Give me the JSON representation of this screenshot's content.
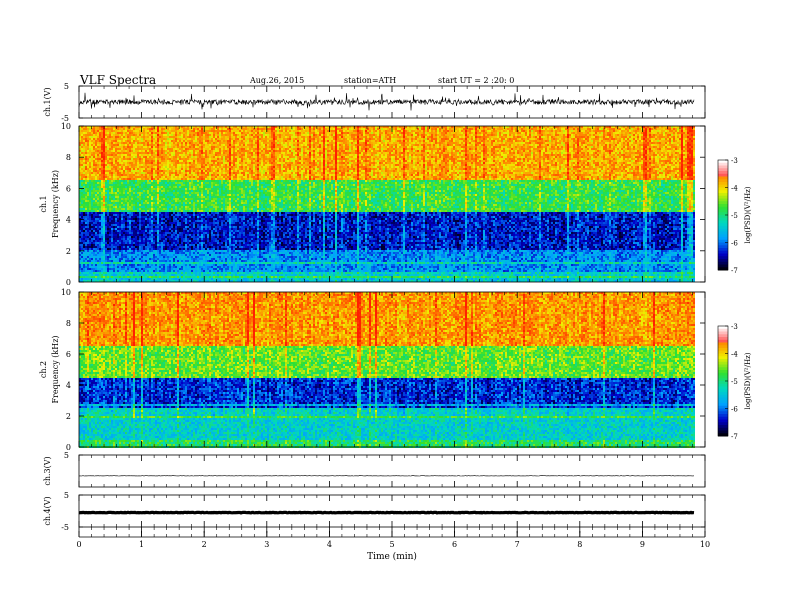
{
  "header": {
    "title": "VLF Spectra",
    "date": "Aug.26, 2015",
    "station": "station=ATH",
    "start": "start  UT =   2  :20: 0"
  },
  "chart_data": [
    {
      "type": "line",
      "name": "ch1-waveform",
      "ylabel": "ch.1(V)",
      "ylim": [
        -5,
        5
      ],
      "y_ticks": [
        "5",
        "-5"
      ],
      "noise_amplitude_v": 1.4
    },
    {
      "type": "heatmap",
      "name": "ch1-spectrogram",
      "ylabel": "ch.1\nFrequency (kHz)",
      "ylim": [
        0,
        10
      ],
      "y_ticks": [
        "0",
        "2",
        "4",
        "6",
        "8",
        "10"
      ],
      "colorbar": {
        "label": "log(PSD)(V²/Hz)",
        "range": [
          -7,
          -3
        ],
        "ticks": [
          "-3",
          "-4",
          "-5",
          "-6",
          "-7"
        ]
      },
      "bands": [
        {
          "freq_khz": [
            0,
            0.5
          ],
          "log_psd": -5.5
        },
        {
          "freq_khz": [
            0.5,
            2.0
          ],
          "log_psd": -5.9
        },
        {
          "freq_khz": [
            2.0,
            4.5
          ],
          "log_psd": -6.4
        },
        {
          "freq_khz": [
            4.5,
            6.5
          ],
          "log_psd": -4.8
        },
        {
          "freq_khz": [
            6.5,
            10
          ],
          "log_psd": -3.8
        }
      ]
    },
    {
      "type": "heatmap",
      "name": "ch2-spectrogram",
      "ylabel": "ch.2\nFrequency (kHz)",
      "ylim": [
        0,
        10
      ],
      "y_ticks": [
        "0",
        "2",
        "4",
        "6",
        "8",
        "10"
      ],
      "colorbar": {
        "label": "log(PSD)(V²/Hz)",
        "range": [
          -7,
          -3
        ],
        "ticks": [
          "-3",
          "-4",
          "-5",
          "-6",
          "-7"
        ]
      },
      "bands": [
        {
          "freq_khz": [
            0,
            0.5
          ],
          "log_psd": -4.9
        },
        {
          "freq_khz": [
            0.5,
            2.5
          ],
          "log_psd": -5.4
        },
        {
          "freq_khz": [
            2.5,
            4.5
          ],
          "log_psd": -6.3
        },
        {
          "freq_khz": [
            4.5,
            6.5
          ],
          "log_psd": -4.6
        },
        {
          "freq_khz": [
            6.5,
            10
          ],
          "log_psd": -3.7
        }
      ]
    },
    {
      "type": "line",
      "name": "ch3-waveform",
      "ylabel": "ch.3(V)",
      "ylim": [
        -5,
        5
      ],
      "y_ticks": [
        "5"
      ],
      "offset_v": -1.5,
      "noise_amplitude_v": 0.1
    },
    {
      "type": "line",
      "name": "ch4-waveform",
      "ylabel": "ch.4(V)",
      "ylim": [
        -5,
        5
      ],
      "y_ticks": [
        "5",
        "-5"
      ],
      "offset_v": -0.5,
      "noise_amplitude_v": 0.15
    }
  ],
  "x_axis": {
    "label": "Time (min)",
    "xlim": [
      0,
      10
    ],
    "data_end_min": 9.83,
    "ticks": [
      "0",
      "1",
      "2",
      "3",
      "4",
      "5",
      "6",
      "7",
      "8",
      "9",
      "10"
    ]
  },
  "colors": {
    "scale": [
      "#000000",
      "#0000c8",
      "#00a0ff",
      "#00d8c0",
      "#30e030",
      "#f0f000",
      "#ff8000",
      "#ff2000",
      "#ffffff"
    ]
  }
}
